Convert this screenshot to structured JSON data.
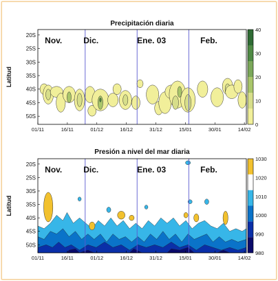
{
  "chart_data": [
    {
      "type": "contour",
      "title": "Precipitación diaria",
      "ylabel": "Latitud",
      "y_ticks": [
        "20S",
        "25S",
        "30S",
        "35S",
        "40S",
        "45S",
        "50S"
      ],
      "x_ticks": [
        "01/11",
        "16/11",
        "01/12",
        "16/12",
        "31/12",
        "15/01",
        "30/01",
        "14/02"
      ],
      "month_labels": [
        "Nov.",
        "Dic.",
        "Ene. 03",
        "Feb."
      ],
      "colorbar": {
        "ticks": [
          "0",
          "10",
          "20",
          "30",
          "40"
        ],
        "range": [
          0,
          40
        ],
        "colors": [
          "#f1ef9a",
          "#d7de8a",
          "#a9c66a",
          "#7ba85a",
          "#4f8a44",
          "#2f6b34"
        ]
      },
      "blobs": [
        {
          "c": 0,
          "x": 0.03,
          "y": 40,
          "w": 0.02,
          "h": 4
        },
        {
          "c": 0,
          "x": 0.05,
          "y": 42,
          "w": 0.025,
          "h": 7
        },
        {
          "c": 1,
          "x": 0.05,
          "y": 42,
          "w": 0.012,
          "h": 4
        },
        {
          "c": 0,
          "x": 0.09,
          "y": 41,
          "w": 0.03,
          "h": 4
        },
        {
          "c": 0,
          "x": 0.11,
          "y": 45,
          "w": 0.022,
          "h": 7
        },
        {
          "c": 0,
          "x": 0.15,
          "y": 42,
          "w": 0.03,
          "h": 6
        },
        {
          "c": 2,
          "x": 0.15,
          "y": 43,
          "w": 0.01,
          "h": 4
        },
        {
          "c": 0,
          "x": 0.2,
          "y": 44,
          "w": 0.025,
          "h": 8
        },
        {
          "c": 1,
          "x": 0.2,
          "y": 44,
          "w": 0.012,
          "h": 5
        },
        {
          "c": 0,
          "x": 0.25,
          "y": 42,
          "w": 0.025,
          "h": 6
        },
        {
          "c": 0,
          "x": 0.26,
          "y": 48,
          "w": 0.02,
          "h": 4
        },
        {
          "c": 0,
          "x": 0.3,
          "y": 44,
          "w": 0.04,
          "h": 8
        },
        {
          "c": 2,
          "x": 0.3,
          "y": 45,
          "w": 0.012,
          "h": 5
        },
        {
          "c": 4,
          "x": 0.3,
          "y": 44,
          "w": 0.004,
          "h": 1.5
        },
        {
          "c": 0,
          "x": 0.36,
          "y": 44,
          "w": 0.025,
          "h": 5
        },
        {
          "c": 0,
          "x": 0.38,
          "y": 40,
          "w": 0.02,
          "h": 4
        },
        {
          "c": 0,
          "x": 0.42,
          "y": 44,
          "w": 0.03,
          "h": 7
        },
        {
          "c": 1,
          "x": 0.42,
          "y": 44,
          "w": 0.012,
          "h": 4
        },
        {
          "c": 0,
          "x": 0.47,
          "y": 45,
          "w": 0.02,
          "h": 5
        },
        {
          "c": 0,
          "x": 0.49,
          "y": 38,
          "w": 0.015,
          "h": 3
        },
        {
          "c": 0,
          "x": 0.55,
          "y": 42,
          "w": 0.03,
          "h": 7
        },
        {
          "c": 0,
          "x": 0.58,
          "y": 47,
          "w": 0.02,
          "h": 5
        },
        {
          "c": 0,
          "x": 0.61,
          "y": 45,
          "w": 0.03,
          "h": 8
        },
        {
          "c": 0,
          "x": 0.64,
          "y": 41,
          "w": 0.03,
          "h": 5
        },
        {
          "c": 0,
          "x": 0.67,
          "y": 42,
          "w": 0.04,
          "h": 10
        },
        {
          "c": 1,
          "x": 0.66,
          "y": 45,
          "w": 0.015,
          "h": 5
        },
        {
          "c": 2,
          "x": 0.68,
          "y": 41,
          "w": 0.01,
          "h": 4
        },
        {
          "c": 0,
          "x": 0.72,
          "y": 44,
          "w": 0.035,
          "h": 9
        },
        {
          "c": 1,
          "x": 0.72,
          "y": 45,
          "w": 0.015,
          "h": 6
        },
        {
          "c": 0,
          "x": 0.79,
          "y": 40,
          "w": 0.025,
          "h": 6
        },
        {
          "c": 0,
          "x": 0.86,
          "y": 43,
          "w": 0.03,
          "h": 7
        },
        {
          "c": 0,
          "x": 0.91,
          "y": 39,
          "w": 0.025,
          "h": 6
        },
        {
          "c": 1,
          "x": 0.91,
          "y": 40,
          "w": 0.012,
          "h": 4
        },
        {
          "c": 0,
          "x": 0.93,
          "y": 41,
          "w": 0.03,
          "h": 5
        },
        {
          "c": 0,
          "x": 0.96,
          "y": 39,
          "w": 0.02,
          "h": 5
        },
        {
          "c": 0,
          "x": 0.98,
          "y": 44,
          "w": 0.02,
          "h": 6
        }
      ]
    },
    {
      "type": "contour",
      "title": "Presión a nivel del mar diaria",
      "ylabel": "Latitud",
      "y_ticks": [
        "20S",
        "25S",
        "30S",
        "35S",
        "40S",
        "45S",
        "50S"
      ],
      "x_ticks": [
        "01/11",
        "16/11",
        "01/12",
        "16/12",
        "31/12",
        "15/01",
        "30/01",
        "14/02"
      ],
      "month_labels": [
        "Nov.",
        "Dic.",
        "Ene. 03",
        "Feb."
      ],
      "colorbar": {
        "ticks": [
          "980",
          "990",
          "1000",
          "1010",
          "1020",
          "1030"
        ],
        "range": [
          980,
          1030
        ],
        "colors": [
          "#0a0a6a",
          "#0a2fa8",
          "#0a73c9",
          "#37b6e8",
          "#ffffff",
          "#f2c12e"
        ]
      },
      "bands": [
        {
          "c": 3,
          "points": [
            [
              0,
              53
            ],
            [
              0,
              43
            ],
            [
              0.03,
              44
            ],
            [
              0.06,
              42
            ],
            [
              0.09,
              39
            ],
            [
              0.12,
              41
            ],
            [
              0.14,
              38
            ],
            [
              0.17,
              42
            ],
            [
              0.2,
              40
            ],
            [
              0.23,
              42
            ],
            [
              0.26,
              44
            ],
            [
              0.29,
              41
            ],
            [
              0.32,
              43
            ],
            [
              0.35,
              40
            ],
            [
              0.38,
              43
            ],
            [
              0.41,
              41
            ],
            [
              0.44,
              44
            ],
            [
              0.47,
              42
            ],
            [
              0.5,
              44
            ],
            [
              0.53,
              41
            ],
            [
              0.56,
              43
            ],
            [
              0.59,
              40
            ],
            [
              0.62,
              42
            ],
            [
              0.65,
              40
            ],
            [
              0.68,
              43
            ],
            [
              0.71,
              41
            ],
            [
              0.74,
              44
            ],
            [
              0.77,
              42
            ],
            [
              0.8,
              41
            ],
            [
              0.83,
              43
            ],
            [
              0.86,
              44
            ],
            [
              0.89,
              42
            ],
            [
              0.92,
              45
            ],
            [
              0.95,
              44
            ],
            [
              0.98,
              45
            ],
            [
              1.0,
              44
            ],
            [
              1.0,
              53
            ]
          ]
        },
        {
          "c": 2,
          "points": [
            [
              0,
              53
            ],
            [
              0,
              47
            ],
            [
              0.03,
              48
            ],
            [
              0.06,
              45
            ],
            [
              0.09,
              46
            ],
            [
              0.12,
              44
            ],
            [
              0.15,
              47
            ],
            [
              0.18,
              45
            ],
            [
              0.21,
              48
            ],
            [
              0.24,
              46
            ],
            [
              0.27,
              48
            ],
            [
              0.3,
              46
            ],
            [
              0.33,
              49
            ],
            [
              0.36,
              46
            ],
            [
              0.39,
              48
            ],
            [
              0.42,
              47
            ],
            [
              0.45,
              49
            ],
            [
              0.48,
              47
            ],
            [
              0.51,
              49
            ],
            [
              0.54,
              46
            ],
            [
              0.57,
              48
            ],
            [
              0.6,
              45
            ],
            [
              0.63,
              48
            ],
            [
              0.66,
              46
            ],
            [
              0.69,
              49
            ],
            [
              0.72,
              46
            ],
            [
              0.75,
              48
            ],
            [
              0.78,
              47
            ],
            [
              0.81,
              46
            ],
            [
              0.84,
              49
            ],
            [
              0.87,
              47
            ],
            [
              0.9,
              49
            ],
            [
              0.93,
              48
            ],
            [
              0.96,
              49
            ],
            [
              1.0,
              48
            ],
            [
              1.0,
              53
            ]
          ]
        },
        {
          "c": 1,
          "points": [
            [
              0,
              53
            ],
            [
              0,
              51
            ],
            [
              0.04,
              50
            ],
            [
              0.07,
              51
            ],
            [
              0.1,
              49
            ],
            [
              0.13,
              51
            ],
            [
              0.16,
              50
            ],
            [
              0.2,
              52
            ],
            [
              0.24,
              50
            ],
            [
              0.28,
              51
            ],
            [
              0.32,
              49
            ],
            [
              0.36,
              51
            ],
            [
              0.4,
              50
            ],
            [
              0.44,
              52
            ],
            [
              0.48,
              50
            ],
            [
              0.52,
              51
            ],
            [
              0.56,
              50
            ],
            [
              0.6,
              51
            ],
            [
              0.64,
              49
            ],
            [
              0.68,
              51
            ],
            [
              0.72,
              50
            ],
            [
              0.76,
              52
            ],
            [
              0.8,
              50
            ],
            [
              0.84,
              51
            ],
            [
              0.88,
              52
            ],
            [
              0.92,
              51
            ],
            [
              0.96,
              52
            ],
            [
              1.0,
              51
            ],
            [
              1.0,
              53
            ]
          ]
        },
        {
          "c": 0,
          "points": [
            [
              0.14,
              53
            ],
            [
              0.15,
              52
            ],
            [
              0.18,
              51.5
            ],
            [
              0.2,
              53
            ],
            [
              0.24,
              52
            ],
            [
              0.27,
              53
            ],
            [
              0.44,
              53
            ],
            [
              0.46,
              51.5
            ],
            [
              0.5,
              53
            ],
            [
              0.62,
              53
            ],
            [
              0.64,
              51.5
            ],
            [
              0.68,
              52
            ],
            [
              0.72,
              51
            ],
            [
              0.75,
              53
            ],
            [
              0.86,
              53
            ],
            [
              0.89,
              52
            ],
            [
              0.92,
              53
            ]
          ]
        }
      ],
      "blobs": [
        {
          "c": 5,
          "x": 0.05,
          "y": 36,
          "w": 0.022,
          "h": 11
        },
        {
          "c": 5,
          "x": 0.26,
          "y": 43,
          "w": 0.014,
          "h": 3
        },
        {
          "c": 5,
          "x": 0.4,
          "y": 39,
          "w": 0.018,
          "h": 3
        },
        {
          "c": 5,
          "x": 0.45,
          "y": 40,
          "w": 0.012,
          "h": 2
        },
        {
          "c": 5,
          "x": 0.71,
          "y": 39,
          "w": 0.01,
          "h": 2
        },
        {
          "c": 5,
          "x": 0.76,
          "y": 40,
          "w": 0.012,
          "h": 3
        },
        {
          "c": 5,
          "x": 0.9,
          "y": 40,
          "w": 0.012,
          "h": 5
        },
        {
          "c": 3,
          "x": 0.2,
          "y": 33,
          "w": 0.008,
          "h": 1.5
        },
        {
          "c": 3,
          "x": 0.34,
          "y": 37,
          "w": 0.01,
          "h": 2
        },
        {
          "c": 3,
          "x": 0.52,
          "y": 36,
          "w": 0.008,
          "h": 1.5
        },
        {
          "c": 3,
          "x": 0.73,
          "y": 34,
          "w": 0.01,
          "h": 1.5
        },
        {
          "c": 3,
          "x": 0.81,
          "y": 34,
          "w": 0.01,
          "h": 2
        },
        {
          "c": 3,
          "x": 0.72,
          "y": 19.5,
          "w": 0.012,
          "h": 1.5
        }
      ]
    }
  ]
}
